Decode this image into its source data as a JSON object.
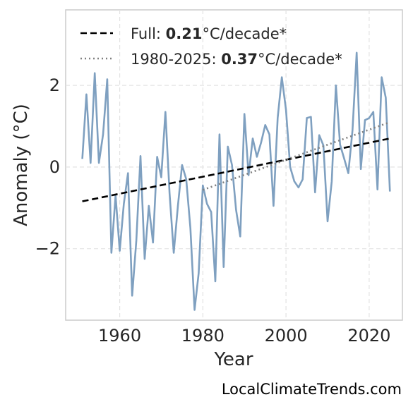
{
  "chart_data": {
    "type": "line",
    "xlabel": "Year",
    "ylabel": "Anomaly (°C)",
    "xlim": [
      1947,
      2028
    ],
    "ylim": [
      -3.75,
      3.85
    ],
    "xticks": [
      1960,
      1980,
      2000,
      2020
    ],
    "yticks": [
      -2,
      0,
      2
    ],
    "ytick_labels": [
      "−2",
      "0",
      "2"
    ],
    "grid": true,
    "legend_position": "top-left",
    "series": [
      {
        "color": "#7fa0c0",
        "x": [
          1951,
          1952,
          1953,
          1954,
          1955,
          1956,
          1957,
          1958,
          1959,
          1960,
          1961,
          1962,
          1963,
          1964,
          1965,
          1966,
          1967,
          1968,
          1969,
          1970,
          1971,
          1972,
          1973,
          1974,
          1975,
          1976,
          1977,
          1978,
          1979,
          1980,
          1981,
          1982,
          1983,
          1984,
          1985,
          1986,
          1987,
          1988,
          1989,
          1990,
          1991,
          1992,
          1993,
          1994,
          1995,
          1996,
          1997,
          1998,
          1999,
          2000,
          2001,
          2002,
          2003,
          2004,
          2005,
          2006,
          2007,
          2008,
          2009,
          2010,
          2011,
          2012,
          2013,
          2014,
          2015,
          2016,
          2017,
          2018,
          2019,
          2020,
          2021,
          2022,
          2023,
          2024,
          2025
        ],
        "y": [
          0.2,
          1.78,
          0.1,
          2.3,
          0.1,
          0.8,
          2.15,
          -2.1,
          -0.7,
          -2.05,
          -0.9,
          -0.15,
          -3.15,
          -1.8,
          0.27,
          -2.25,
          -0.95,
          -1.85,
          0.25,
          -0.25,
          1.35,
          -0.65,
          -2.1,
          -0.95,
          0.05,
          -0.3,
          -1.5,
          -3.5,
          -2.6,
          -0.45,
          -0.9,
          -1.1,
          -2.8,
          0.8,
          -2.45,
          0.5,
          0.05,
          -1.05,
          -1.7,
          1.3,
          -0.2,
          0.7,
          0.25,
          0.6,
          1.03,
          0.8,
          -0.95,
          1.2,
          2.2,
          1.4,
          0.0,
          -0.35,
          -0.5,
          -0.3,
          1.2,
          1.23,
          -0.62,
          0.78,
          0.53,
          -1.33,
          -0.35,
          2.0,
          0.55,
          0.2,
          -0.15,
          0.9,
          2.8,
          -0.05,
          1.15,
          1.2,
          1.35,
          -0.55,
          2.2,
          1.7,
          -0.6
        ]
      },
      {
        "name": "Full",
        "style": "dashed",
        "color": "#000000",
        "x": [
          1951,
          2025
        ],
        "y": [
          -0.84,
          0.7
        ]
      },
      {
        "name": "1980-2025",
        "style": "dotted",
        "color": "#808080",
        "x": [
          1980,
          2025
        ],
        "y": [
          -0.56,
          1.1
        ]
      }
    ],
    "legend": [
      {
        "label_prefix": "Full: ",
        "value": "0.21",
        "label_suffix": "°C/decade*",
        "style": "dashed",
        "color": "#000000"
      },
      {
        "label_prefix": "1980-2025: ",
        "value": "0.37",
        "label_suffix": "°C/decade*",
        "style": "dotted",
        "color": "#808080"
      }
    ]
  },
  "footer": {
    "source": "LocalClimateTrends.com"
  }
}
